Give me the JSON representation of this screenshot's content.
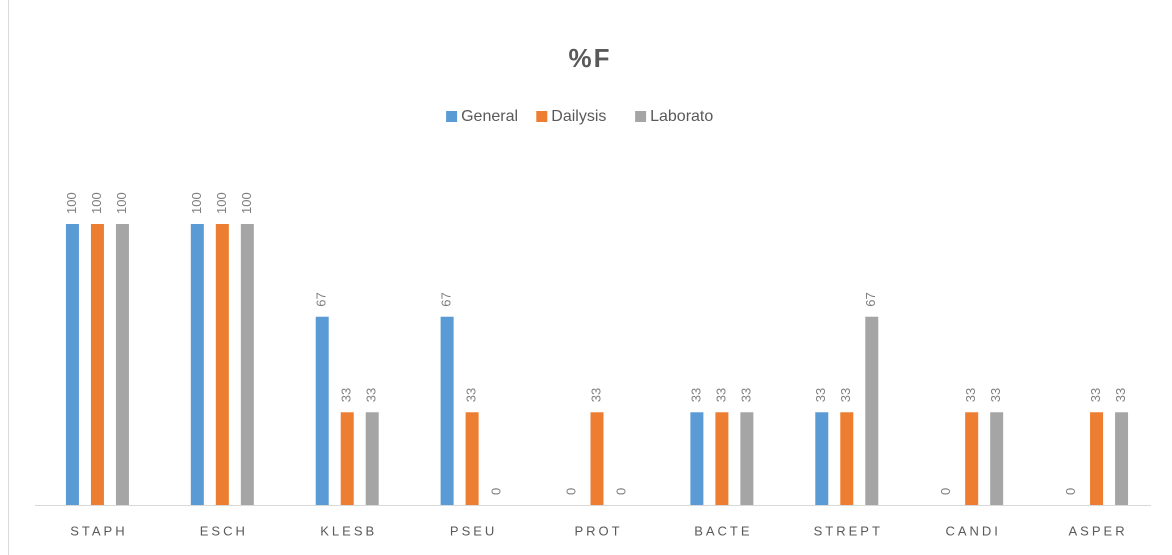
{
  "chart_data": {
    "type": "bar",
    "title": "%F",
    "categories": [
      "STAPH",
      "ESCH",
      "KLESB",
      "PSEU",
      "PROT",
      "BACTE",
      "STREPT",
      "CANDI",
      "ASPER"
    ],
    "series": [
      {
        "name": "General",
        "color": "#5b9bd5",
        "values": [
          100,
          100,
          67,
          67,
          0,
          33,
          33,
          0,
          0
        ]
      },
      {
        "name": "Dailysis",
        "color": "#ed7d31",
        "values": [
          100,
          100,
          33,
          33,
          33,
          33,
          33,
          33,
          33
        ]
      },
      {
        "name": "Laborato",
        "color": "#a5a5a5",
        "values": [
          100,
          100,
          33,
          0,
          0,
          33,
          67,
          33,
          33
        ]
      }
    ],
    "ylim": [
      0,
      100
    ],
    "legend": "top",
    "data_labels": true
  }
}
